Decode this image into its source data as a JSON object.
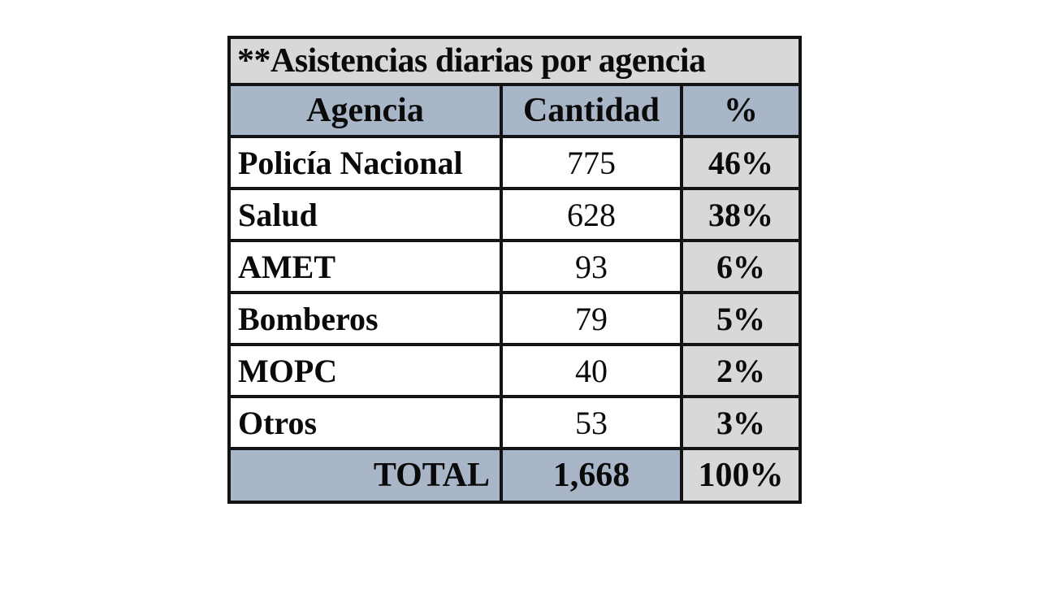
{
  "chart_data": {
    "type": "table",
    "title": "**Asistencias diarias por agencia",
    "columns": [
      "Agencia",
      "Cantidad",
      "%"
    ],
    "rows": [
      {
        "agencia": "Policía Nacional",
        "cantidad": "775",
        "pct": "46%"
      },
      {
        "agencia": "Salud",
        "cantidad": "628",
        "pct": "38%"
      },
      {
        "agencia": "AMET",
        "cantidad": "93",
        "pct": "6%"
      },
      {
        "agencia": "Bomberos",
        "cantidad": "79",
        "pct": "5%"
      },
      {
        "agencia": "MOPC",
        "cantidad": "40",
        "pct": "2%"
      },
      {
        "agencia": "Otros",
        "cantidad": "53",
        "pct": "3%"
      }
    ],
    "total_row": {
      "label": "TOTAL",
      "cantidad": "1,668",
      "pct": "100%"
    },
    "cantidad_values_numeric": [
      775,
      628,
      93,
      79,
      40,
      53
    ],
    "pct_values_numeric": [
      46,
      38,
      6,
      5,
      2,
      3
    ],
    "total_numeric": 1668,
    "total_pct_numeric": 100
  },
  "colors": {
    "title_band_bg": "#d8d8d8",
    "header_band_bg": "#a8b6c8",
    "pct_column_bg": "#d8d8d8",
    "data_cell_bg": "#ffffff",
    "border": "#131313",
    "text": "#0a0a0a",
    "page_bg": "#ffffff"
  }
}
